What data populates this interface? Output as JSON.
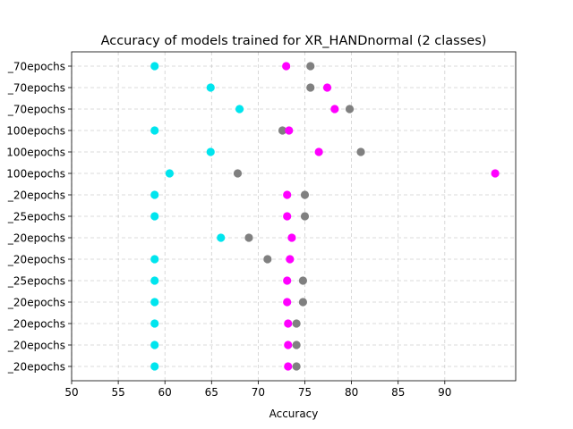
{
  "chart_data": {
    "type": "scatter",
    "title": "Accuracy of models trained for XR_HANDnormal (2 classes)",
    "xlabel": "Accuracy",
    "ylabel": "",
    "xlim": [
      50,
      97.6
    ],
    "xticks": [
      50,
      55,
      60,
      65,
      70,
      75,
      80,
      85,
      90
    ],
    "grid": true,
    "categories": [
      "_70epochs",
      "_70epochs",
      "_70epochs",
      "100epochs",
      "100epochs",
      "100epochs",
      "_20epochs",
      "_25epochs",
      "_20epochs",
      "_20epochs",
      "_25epochs",
      "_20epochs",
      "_20epochs",
      "_20epochs",
      "_20epochs"
    ],
    "series": [
      {
        "color": "#00e5ee",
        "values": [
          58.9,
          64.9,
          68.0,
          58.9,
          64.9,
          60.5,
          58.9,
          58.9,
          66.0,
          58.9,
          58.9,
          58.9,
          58.9,
          58.9,
          58.9
        ]
      },
      {
        "color": "#808080",
        "values": [
          75.6,
          75.6,
          79.8,
          72.6,
          81.0,
          67.8,
          75.0,
          75.0,
          69.0,
          71.0,
          74.8,
          74.8,
          74.1,
          74.1,
          74.1
        ]
      },
      {
        "color": "#ff00ff",
        "values": [
          73.0,
          77.4,
          78.2,
          73.3,
          76.5,
          95.4,
          73.1,
          73.1,
          73.6,
          73.4,
          73.1,
          73.1,
          73.2,
          73.2,
          73.2
        ]
      }
    ]
  }
}
